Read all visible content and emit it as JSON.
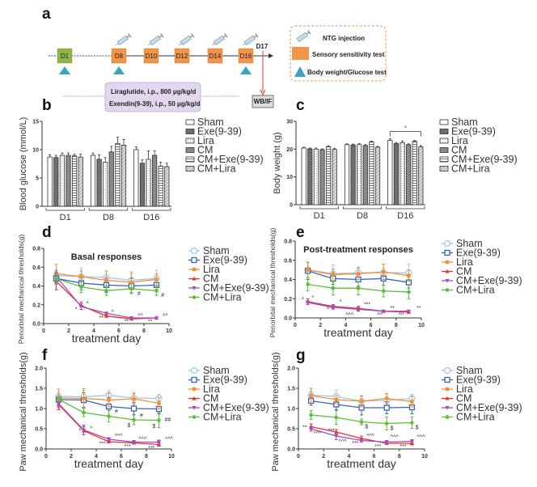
{
  "panel_labels": {
    "a": "a",
    "b": "b",
    "c": "c",
    "d": "d",
    "e": "e",
    "f": "f",
    "g": "g"
  },
  "timeline": {
    "days": [
      {
        "label": "D1",
        "color": "#8bb84a",
        "test": true,
        "injection": false
      },
      {
        "label": "D8",
        "color": "#f0954a",
        "test": true,
        "injection": true
      },
      {
        "label": "D10",
        "color": "#f0954a",
        "test": false,
        "injection": true
      },
      {
        "label": "D12",
        "color": "#f0954a",
        "test": false,
        "injection": true
      },
      {
        "label": "D14",
        "color": "#f0954a",
        "test": false,
        "injection": true
      },
      {
        "label": "D16",
        "color": "#f0954a",
        "test": true,
        "injection": true
      }
    ],
    "end_label": "D17",
    "endpoint_label": "WB/IF",
    "treatments": [
      "Liraglutide, i.p., 800 μg/kg/d",
      "Exendin(9-39), i.p., 50 μg/kg/d"
    ],
    "legend": {
      "injection": "NTG injection",
      "sensory": "Sensory sensitivity test",
      "body": "Body weight/Glucose test"
    },
    "colors": {
      "orange": "#f0954a",
      "teal": "#3aa4c0",
      "purple_box": "#e3d6ef",
      "arrow_red": "#d9403a"
    }
  },
  "groups": [
    "Sham",
    "Exe(9-39)",
    "Lira",
    "CM",
    "CM+Exe(9-39)",
    "CM+Lira"
  ],
  "line_colors": {
    "Sham": "#9ec5ec",
    "Exe(9-39)": "#3a62b8",
    "Lira": "#f0902e",
    "CM": "#e8302e",
    "CM+Exe(9-39)": "#a64bc0",
    "CM+Lira": "#5cbf3a"
  },
  "chart_data": [
    {
      "id": "b",
      "type": "bar",
      "title": "",
      "ylabel": "Blood glucose (mmol/L)",
      "xlabel": "",
      "ylim": [
        0,
        15
      ],
      "yticks": [
        0,
        5,
        10,
        15
      ],
      "categories": [
        "D1",
        "D8",
        "D16"
      ],
      "series": [
        {
          "name": "Sham",
          "values": [
            8.7,
            9.0,
            10.0
          ],
          "err": [
            0.4,
            0.4,
            0.5
          ]
        },
        {
          "name": "Exe(9-39)",
          "values": [
            8.6,
            8.3,
            7.6
          ],
          "err": [
            0.4,
            0.8,
            0.6
          ]
        },
        {
          "name": "Lira",
          "values": [
            9.0,
            7.8,
            8.3
          ],
          "err": [
            0.4,
            0.8,
            1.5
          ]
        },
        {
          "name": "CM",
          "values": [
            9.0,
            9.6,
            9.0
          ],
          "err": [
            0.4,
            1.0,
            0.8
          ]
        },
        {
          "name": "CM+Exe(9-39)",
          "values": [
            8.9,
            11.1,
            7.1
          ],
          "err": [
            0.3,
            1.1,
            0.7
          ]
        },
        {
          "name": "CM+Lira",
          "values": [
            8.7,
            10.8,
            7.0
          ],
          "err": [
            0.5,
            1.0,
            0.6
          ]
        }
      ],
      "legend": "right",
      "annotations": []
    },
    {
      "id": "c",
      "type": "bar",
      "title": "",
      "ylabel": "Body weight (g)",
      "xlabel": "",
      "ylim": [
        0,
        30
      ],
      "yticks": [
        0,
        10,
        20,
        30
      ],
      "categories": [
        "D1",
        "D8",
        "D16"
      ],
      "series": [
        {
          "name": "Sham",
          "values": [
            20.4,
            21.6,
            23.2
          ],
          "err": [
            0.3,
            0.3,
            0.5
          ]
        },
        {
          "name": "Exe(9-39)",
          "values": [
            20.1,
            21.5,
            22.0
          ],
          "err": [
            0.3,
            0.3,
            0.4
          ]
        },
        {
          "name": "Lira",
          "values": [
            20.0,
            21.6,
            22.3
          ],
          "err": [
            0.4,
            0.4,
            0.6
          ]
        },
        {
          "name": "CM",
          "values": [
            19.8,
            21.3,
            21.6
          ],
          "err": [
            0.3,
            0.3,
            0.3
          ]
        },
        {
          "name": "CM+Exe(9-39)",
          "values": [
            20.9,
            22.6,
            22.8
          ],
          "err": [
            0.3,
            0.3,
            0.3
          ]
        },
        {
          "name": "CM+Lira",
          "values": [
            19.9,
            20.7,
            20.8
          ],
          "err": [
            0.4,
            0.3,
            0.5
          ]
        }
      ],
      "legend": "right",
      "annotations": [
        {
          "text": "*",
          "category": "D16",
          "bracket": [
            "Sham",
            "CM+Lira"
          ]
        }
      ]
    },
    {
      "id": "d",
      "type": "line",
      "title": "Basal responses",
      "ylabel": "Periorbital mechanical thresholds(g)",
      "xlabel": "treatment day",
      "xlim": [
        0,
        10
      ],
      "ylim": [
        0,
        0.8
      ],
      "xticks": [
        0,
        2,
        4,
        6,
        8,
        10
      ],
      "yticks": [
        0.0,
        0.2,
        0.4,
        0.6,
        0.8
      ],
      "x": [
        1,
        3,
        5,
        7,
        9
      ],
      "series": [
        {
          "name": "Sham",
          "values": [
            0.51,
            0.5,
            0.49,
            0.46,
            0.48
          ],
          "err": [
            0.06,
            0.09,
            0.07,
            0.07,
            0.09
          ]
        },
        {
          "name": "Exe(9-39)",
          "values": [
            0.48,
            0.43,
            0.41,
            0.4,
            0.41
          ],
          "err": [
            0.06,
            0.07,
            0.08,
            0.08,
            0.07
          ]
        },
        {
          "name": "Lira",
          "values": [
            0.53,
            0.5,
            0.46,
            0.44,
            0.47
          ],
          "err": [
            0.1,
            0.06,
            0.1,
            0.11,
            0.06
          ]
        },
        {
          "name": "CM",
          "values": [
            0.45,
            0.19,
            0.08,
            0.05,
            0.06
          ],
          "err": [
            0.09,
            0.04,
            0.01,
            0.01,
            0.01
          ]
        },
        {
          "name": "CM+Exe(9-39)",
          "values": [
            0.5,
            0.18,
            0.11,
            0.06,
            0.06
          ],
          "err": [
            0.06,
            0.03,
            0.01,
            0.01,
            0.01
          ]
        },
        {
          "name": "CM+Lira",
          "values": [
            0.48,
            0.39,
            0.35,
            0.37,
            0.35
          ],
          "err": [
            0.05,
            0.06,
            0.05,
            0.05,
            0.05
          ]
        }
      ],
      "legend": "right",
      "annotations": [
        {
          "text": "*",
          "x": 2.6,
          "y": 0.15
        },
        {
          "text": "^",
          "x": 3.5,
          "y": 0.21
        },
        {
          "text": "**",
          "x": 4.6,
          "y": 0.06
        },
        {
          "text": "^",
          "x": 5.5,
          "y": 0.12
        },
        {
          "text": "**",
          "x": 6.6,
          "y": 0.02
        },
        {
          "text": "^^",
          "x": 7.7,
          "y": 0.08
        },
        {
          "text": "#",
          "x": 7.6,
          "y": 0.32
        },
        {
          "text": "**",
          "x": 8.5,
          "y": 0.02
        },
        {
          "text": "^^",
          "x": 9.7,
          "y": 0.08
        },
        {
          "text": "#",
          "x": 9.5,
          "y": 0.3
        }
      ]
    },
    {
      "id": "e",
      "type": "line",
      "title": "Post-treatment responses",
      "ylabel": "Periorbital mechanical thresholds(g)",
      "xlabel": "treatment day",
      "xlim": [
        0,
        10
      ],
      "ylim": [
        0,
        0.8
      ],
      "xticks": [
        0,
        2,
        4,
        6,
        8,
        10
      ],
      "yticks": [
        0.0,
        0.2,
        0.4,
        0.6,
        0.8
      ],
      "x": [
        1,
        3,
        5,
        7,
        9
      ],
      "series": [
        {
          "name": "Sham",
          "values": [
            0.5,
            0.46,
            0.47,
            0.47,
            0.47
          ],
          "err": [
            0.08,
            0.09,
            0.06,
            0.05,
            0.09
          ]
        },
        {
          "name": "Exe(9-39)",
          "values": [
            0.49,
            0.41,
            0.4,
            0.41,
            0.37
          ],
          "err": [
            0.09,
            0.06,
            0.07,
            0.07,
            0.06
          ]
        },
        {
          "name": "Lira",
          "values": [
            0.5,
            0.45,
            0.46,
            0.48,
            0.44
          ],
          "err": [
            0.08,
            0.06,
            0.06,
            0.08,
            0.06
          ]
        },
        {
          "name": "CM",
          "values": [
            0.17,
            0.12,
            0.1,
            0.07,
            0.06
          ],
          "err": [
            0.03,
            0.02,
            0.02,
            0.01,
            0.01
          ]
        },
        {
          "name": "CM+Exe(9-39)",
          "values": [
            0.16,
            0.11,
            0.09,
            0.07,
            0.07
          ],
          "err": [
            0.02,
            0.02,
            0.02,
            0.01,
            0.01
          ]
        },
        {
          "name": "CM+Lira",
          "values": [
            0.35,
            0.31,
            0.31,
            0.28,
            0.27
          ],
          "err": [
            0.07,
            0.07,
            0.07,
            0.06,
            0.07
          ]
        }
      ],
      "legend": "right",
      "annotations": [
        {
          "text": "^",
          "x": 0.6,
          "y": 0.19
        },
        {
          "text": "*",
          "x": 1.4,
          "y": 0.21
        },
        {
          "text": "^",
          "x": 2.6,
          "y": 0.09
        },
        {
          "text": "*",
          "x": 3.6,
          "y": 0.17
        },
        {
          "text": "^^^",
          "x": 4.3,
          "y": 0.03
        },
        {
          "text": "***",
          "x": 5.7,
          "y": 0.14
        },
        {
          "text": "^^",
          "x": 6.7,
          "y": 0.03
        },
        {
          "text": "**",
          "x": 7.7,
          "y": 0.1
        },
        {
          "text": "^^",
          "x": 8.4,
          "y": 0.03
        },
        {
          "text": "**",
          "x": 9.8,
          "y": 0.1
        }
      ]
    },
    {
      "id": "f",
      "type": "line",
      "title": "",
      "ylabel": "Paw mechanical thresholds(g)",
      "xlabel": "treatment day",
      "xlim": [
        0,
        10
      ],
      "ylim": [
        0,
        2.0
      ],
      "xticks": [
        0,
        2,
        4,
        6,
        8,
        10
      ],
      "yticks": [
        0.0,
        0.5,
        1.0,
        1.5,
        2.0
      ],
      "x": [
        1,
        3,
        5,
        7,
        9
      ],
      "series": [
        {
          "name": "Sham",
          "values": [
            1.3,
            1.29,
            1.33,
            1.26,
            1.25
          ],
          "err": [
            0.1,
            0.15,
            0.11,
            0.14,
            0.1
          ]
        },
        {
          "name": "Exe(9-39)",
          "values": [
            1.22,
            1.21,
            1.05,
            1.0,
            0.99
          ],
          "err": [
            0.1,
            0.18,
            0.22,
            0.15,
            0.12
          ]
        },
        {
          "name": "Lira",
          "values": [
            1.26,
            1.25,
            1.21,
            1.24,
            1.13
          ],
          "err": [
            0.22,
            0.24,
            0.17,
            0.13,
            0.14
          ]
        },
        {
          "name": "CM",
          "values": [
            1.1,
            0.45,
            0.18,
            0.15,
            0.11
          ],
          "err": [
            0.13,
            0.1,
            0.03,
            0.03,
            0.04
          ]
        },
        {
          "name": "CM+Exe(9-39)",
          "values": [
            1.12,
            0.47,
            0.24,
            0.17,
            0.17
          ],
          "err": [
            0.1,
            0.12,
            0.04,
            0.04,
            0.05
          ]
        },
        {
          "name": "CM+Lira",
          "values": [
            1.23,
            0.9,
            0.81,
            0.72,
            0.71
          ],
          "err": [
            0.05,
            0.1,
            0.14,
            0.12,
            0.18
          ]
        }
      ],
      "legend": "right",
      "annotations": [
        {
          "text": "*",
          "x": 2.7,
          "y": 0.45
        },
        {
          "text": "^",
          "x": 3.6,
          "y": 0.5
        },
        {
          "text": "#",
          "x": 5.6,
          "y": 0.93
        },
        {
          "text": "^^^",
          "x": 5.8,
          "y": 0.32
        },
        {
          "text": "***",
          "x": 4.5,
          "y": 0.13
        },
        {
          "text": "$",
          "x": 6.6,
          "y": 0.58
        },
        {
          "text": "#",
          "x": 7.6,
          "y": 0.83
        },
        {
          "text": "^^^",
          "x": 7.7,
          "y": 0.24
        },
        {
          "text": "***",
          "x": 6.5,
          "y": 0.06
        },
        {
          "text": "$",
          "x": 8.6,
          "y": 0.56
        },
        {
          "text": "##",
          "x": 9.7,
          "y": 0.72
        },
        {
          "text": "^^^",
          "x": 9.8,
          "y": 0.24
        },
        {
          "text": "***",
          "x": 8.4,
          "y": 0.02
        }
      ]
    },
    {
      "id": "g",
      "type": "line",
      "title": "",
      "ylabel": "Paw mechanical thresholds(g)",
      "xlabel": "treatment day",
      "xlim": [
        0,
        10
      ],
      "ylim": [
        0,
        2.0
      ],
      "xticks": [
        0,
        2,
        4,
        6,
        8,
        10
      ],
      "yticks": [
        0.0,
        0.5,
        1.0,
        1.5,
        2.0
      ],
      "x": [
        1,
        3,
        5,
        7,
        9
      ],
      "series": [
        {
          "name": "Sham",
          "values": [
            1.33,
            1.3,
            1.18,
            1.2,
            1.25
          ],
          "err": [
            0.1,
            0.15,
            0.12,
            0.16,
            0.1
          ]
        },
        {
          "name": "Exe(9-39)",
          "values": [
            1.19,
            1.1,
            1.02,
            1.02,
            1.03
          ],
          "err": [
            0.11,
            0.13,
            0.18,
            0.15,
            0.16
          ]
        },
        {
          "name": "Lira",
          "values": [
            1.32,
            1.22,
            1.18,
            1.25,
            1.17
          ],
          "err": [
            0.18,
            0.1,
            0.14,
            0.12,
            0.13
          ]
        },
        {
          "name": "CM",
          "values": [
            0.55,
            0.42,
            0.26,
            0.14,
            0.14
          ],
          "err": [
            0.07,
            0.06,
            0.06,
            0.03,
            0.04
          ]
        },
        {
          "name": "CM+Exe(9-39)",
          "values": [
            0.5,
            0.32,
            0.21,
            0.17,
            0.19
          ],
          "err": [
            0.06,
            0.09,
            0.04,
            0.04,
            0.04
          ]
        },
        {
          "name": "CM+Lira",
          "values": [
            0.84,
            0.78,
            0.67,
            0.63,
            0.65
          ],
          "err": [
            0.11,
            0.17,
            0.07,
            0.16,
            0.14
          ]
        }
      ],
      "legend": "right",
      "annotations": [
        {
          "text": "**",
          "x": 0.5,
          "y": 0.53
        },
        {
          "text": "^^^",
          "x": 1.5,
          "y": 0.38
        },
        {
          "text": "***",
          "x": 2.6,
          "y": 0.45
        },
        {
          "text": "^^^",
          "x": 3.5,
          "y": 0.18
        },
        {
          "text": "***",
          "x": 4.5,
          "y": 0.14
        },
        {
          "text": "$",
          "x": 5.4,
          "y": 0.55
        },
        {
          "text": "^^^",
          "x": 5.7,
          "y": 0.32
        },
        {
          "text": "***",
          "x": 6.3,
          "y": 0.06
        },
        {
          "text": "$",
          "x": 7.4,
          "y": 0.51
        },
        {
          "text": "^^^",
          "x": 7.6,
          "y": 0.29
        },
        {
          "text": "***",
          "x": 8.3,
          "y": 0.06
        },
        {
          "text": "$",
          "x": 9.4,
          "y": 0.53
        },
        {
          "text": "^^^",
          "x": 9.7,
          "y": 0.29
        }
      ]
    }
  ]
}
